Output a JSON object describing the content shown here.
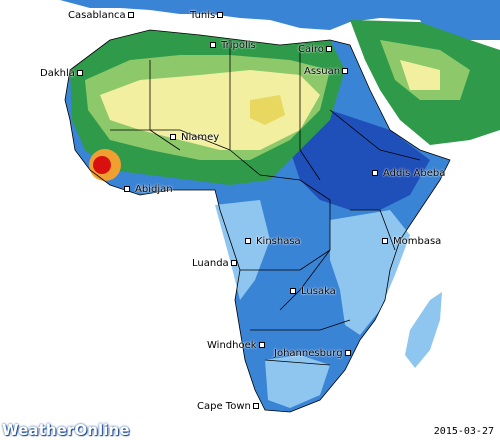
{
  "cities": [
    {
      "name": "Casablanca",
      "label": "Casablanca"
    },
    {
      "name": "Tunis",
      "label": "Tunis"
    },
    {
      "name": "Tripolis",
      "label": "Tripolis"
    },
    {
      "name": "Cairo",
      "label": "Cairo"
    },
    {
      "name": "Assuan",
      "label": "Assuan"
    },
    {
      "name": "Dakhla",
      "label": "Dakhla"
    },
    {
      "name": "Niamey",
      "label": "Niamey"
    },
    {
      "name": "Addis Abeba",
      "label": "Addis Abeba"
    },
    {
      "name": "Abidjan",
      "label": "Abidjan"
    },
    {
      "name": "Kinshasa",
      "label": "Kinshasa"
    },
    {
      "name": "Mombasa",
      "label": "Mombasa"
    },
    {
      "name": "Luanda",
      "label": "Luanda"
    },
    {
      "name": "Lusaka",
      "label": "Lusaka"
    },
    {
      "name": "Windhoek",
      "label": "Windhoek"
    },
    {
      "name": "Johannesburg",
      "label": "Johannesburg"
    },
    {
      "name": "Cape Town",
      "label": "Cape Town"
    }
  ],
  "logo": {
    "text": "WeatherOnline"
  },
  "date": "2015-03-27",
  "colors": {
    "ocean": "#ffffff",
    "land_lightblue": "#8fc6f0",
    "land_blue": "#3a84d6",
    "land_darkblue": "#1f4fb8",
    "land_green": "#2f9a4a",
    "land_lightgreen": "#8dc86a",
    "land_yellow": "#f2f0a0",
    "land_orange": "#f0a030",
    "land_red": "#d81010"
  }
}
